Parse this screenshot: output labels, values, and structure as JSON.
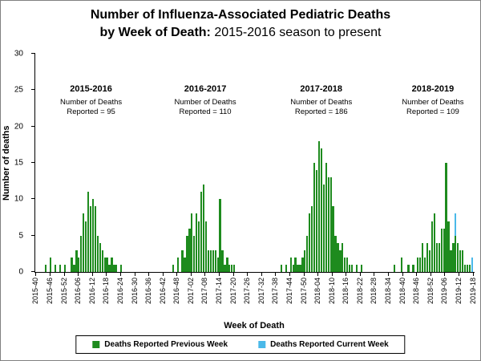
{
  "chart_data": {
    "type": "bar",
    "stacked": true,
    "grid": false,
    "title_line1": "Number of Influenza-Associated Pediatric Deaths",
    "title_line2_bold": "by Week of Death:",
    "title_line2_rest": " 2015-2016 season to present",
    "xlabel": "Week of Death",
    "ylabel": "Number of deaths",
    "ylim": [
      0,
      30
    ],
    "y_ticks": [
      0,
      5,
      10,
      15,
      20,
      25,
      30
    ],
    "x_tick_every": 6,
    "x_tick_labels": [
      "2015-40",
      "2015-46",
      "2015-52",
      "2016-06",
      "2016-12",
      "2016-18",
      "2016-24",
      "2016-30",
      "2016-36",
      "2016-42",
      "2016-48",
      "2017-02",
      "2017-08",
      "2017-14",
      "2017-20",
      "2017-26",
      "2017-32",
      "2017-38",
      "2017-44",
      "2017-50",
      "2018-04",
      "2018-10",
      "2018-16",
      "2018-22",
      "2018-28",
      "2018-34",
      "2018-40",
      "2018-46",
      "2018-52",
      "2019-06",
      "2019-12",
      "2019-18"
    ],
    "week_span": [
      {
        "year": 2015,
        "from": 40,
        "to": 52
      },
      {
        "year": 2016,
        "from": 1,
        "to": 52
      },
      {
        "year": 2017,
        "from": 1,
        "to": 52
      },
      {
        "year": 2018,
        "from": 1,
        "to": 52
      },
      {
        "year": 2019,
        "from": 1,
        "to": 18
      }
    ],
    "series": [
      {
        "name": "Deaths Reported Previous Week",
        "color": "#1e8b1e"
      },
      {
        "name": "Deaths Reported Current Week",
        "color": "#4ab9e9"
      }
    ],
    "annotations": [
      {
        "season": "2015-2016",
        "line1": "Number of Deaths",
        "line2": "Reported = 95",
        "x_frac": 0.127
      },
      {
        "season": "2016-2017",
        "line1": "Number of Deaths",
        "line2": "Reported = 110",
        "x_frac": 0.387
      },
      {
        "season": "2017-2018",
        "line1": "Number of Deaths",
        "line2": "Reported = 186",
        "x_frac": 0.651
      },
      {
        "season": "2018-2019",
        "line1": "Number of Deaths",
        "line2": "Reported = 109",
        "x_frac": 0.905
      }
    ],
    "bars": {
      "2015-44": [
        1,
        0
      ],
      "2015-46": [
        2,
        0
      ],
      "2015-48": [
        1,
        0
      ],
      "2015-50": [
        1,
        0
      ],
      "2015-52": [
        1,
        0
      ],
      "2016-03": [
        2,
        0
      ],
      "2016-04": [
        1,
        0
      ],
      "2016-05": [
        3,
        0
      ],
      "2016-06": [
        2,
        0
      ],
      "2016-07": [
        5,
        0
      ],
      "2016-08": [
        8,
        0
      ],
      "2016-09": [
        7,
        0
      ],
      "2016-10": [
        11,
        0
      ],
      "2016-11": [
        9,
        0
      ],
      "2016-12": [
        10,
        0
      ],
      "2016-13": [
        9,
        0
      ],
      "2016-14": [
        5,
        0
      ],
      "2016-15": [
        4,
        0
      ],
      "2016-16": [
        3,
        0
      ],
      "2016-17": [
        2,
        0
      ],
      "2016-18": [
        2,
        0
      ],
      "2016-19": [
        1,
        0
      ],
      "2016-20": [
        2,
        0
      ],
      "2016-21": [
        1,
        0
      ],
      "2016-22": [
        1,
        0
      ],
      "2016-24": [
        1,
        0
      ],
      "2016-46": [
        1,
        0
      ],
      "2016-48": [
        2,
        0
      ],
      "2016-50": [
        3,
        0
      ],
      "2016-51": [
        2,
        0
      ],
      "2016-52": [
        5,
        0
      ],
      "2017-01": [
        6,
        0
      ],
      "2017-02": [
        8,
        0
      ],
      "2017-03": [
        5,
        0
      ],
      "2017-04": [
        8,
        0
      ],
      "2017-05": [
        7,
        0
      ],
      "2017-06": [
        11,
        0
      ],
      "2017-07": [
        12,
        0
      ],
      "2017-08": [
        7,
        0
      ],
      "2017-09": [
        3,
        0
      ],
      "2017-10": [
        3,
        0
      ],
      "2017-11": [
        3,
        0
      ],
      "2017-12": [
        3,
        0
      ],
      "2017-13": [
        2,
        0
      ],
      "2017-14": [
        10,
        0
      ],
      "2017-15": [
        3,
        0
      ],
      "2017-16": [
        1,
        0
      ],
      "2017-17": [
        2,
        0
      ],
      "2017-18": [
        1,
        0
      ],
      "2017-19": [
        1,
        0
      ],
      "2017-20": [
        1,
        0
      ],
      "2017-40": [
        1,
        0
      ],
      "2017-42": [
        1,
        0
      ],
      "2017-44": [
        2,
        0
      ],
      "2017-45": [
        1,
        0
      ],
      "2017-46": [
        2,
        0
      ],
      "2017-47": [
        1,
        0
      ],
      "2017-48": [
        1,
        0
      ],
      "2017-49": [
        2,
        0
      ],
      "2017-50": [
        3,
        0
      ],
      "2017-51": [
        5,
        0
      ],
      "2017-52": [
        8,
        0
      ],
      "2018-01": [
        9,
        0
      ],
      "2018-02": [
        15,
        0
      ],
      "2018-03": [
        14,
        0
      ],
      "2018-04": [
        18,
        0
      ],
      "2018-05": [
        17,
        0
      ],
      "2018-06": [
        12,
        0
      ],
      "2018-07": [
        15,
        0
      ],
      "2018-08": [
        13,
        0
      ],
      "2018-09": [
        13,
        0
      ],
      "2018-10": [
        9,
        0
      ],
      "2018-11": [
        5,
        0
      ],
      "2018-12": [
        4,
        0
      ],
      "2018-13": [
        3,
        0
      ],
      "2018-14": [
        4,
        0
      ],
      "2018-15": [
        2,
        0
      ],
      "2018-16": [
        2,
        0
      ],
      "2018-17": [
        1,
        0
      ],
      "2018-18": [
        1,
        0
      ],
      "2018-20": [
        1,
        0
      ],
      "2018-22": [
        1,
        0
      ],
      "2018-36": [
        1,
        0
      ],
      "2018-39": [
        2,
        0
      ],
      "2018-42": [
        1,
        0
      ],
      "2018-44": [
        1,
        0
      ],
      "2018-46": [
        2,
        0
      ],
      "2018-47": [
        2,
        0
      ],
      "2018-48": [
        4,
        0
      ],
      "2018-49": [
        2,
        0
      ],
      "2018-50": [
        4,
        0
      ],
      "2018-51": [
        3,
        0
      ],
      "2018-52": [
        7,
        0
      ],
      "2019-01": [
        8,
        0
      ],
      "2019-02": [
        4,
        0
      ],
      "2019-03": [
        4,
        0
      ],
      "2019-04": [
        6,
        0
      ],
      "2019-05": [
        6,
        0
      ],
      "2019-06": [
        15,
        0
      ],
      "2019-07": [
        7,
        0
      ],
      "2019-08": [
        3,
        0
      ],
      "2019-09": [
        4,
        0
      ],
      "2019-10": [
        5,
        3
      ],
      "2019-11": [
        4,
        0
      ],
      "2019-12": [
        3,
        0
      ],
      "2019-13": [
        3,
        0
      ],
      "2019-14": [
        1,
        0
      ],
      "2019-15": [
        1,
        0
      ],
      "2019-16": [
        1,
        0
      ],
      "2019-17": [
        0,
        2
      ]
    }
  }
}
